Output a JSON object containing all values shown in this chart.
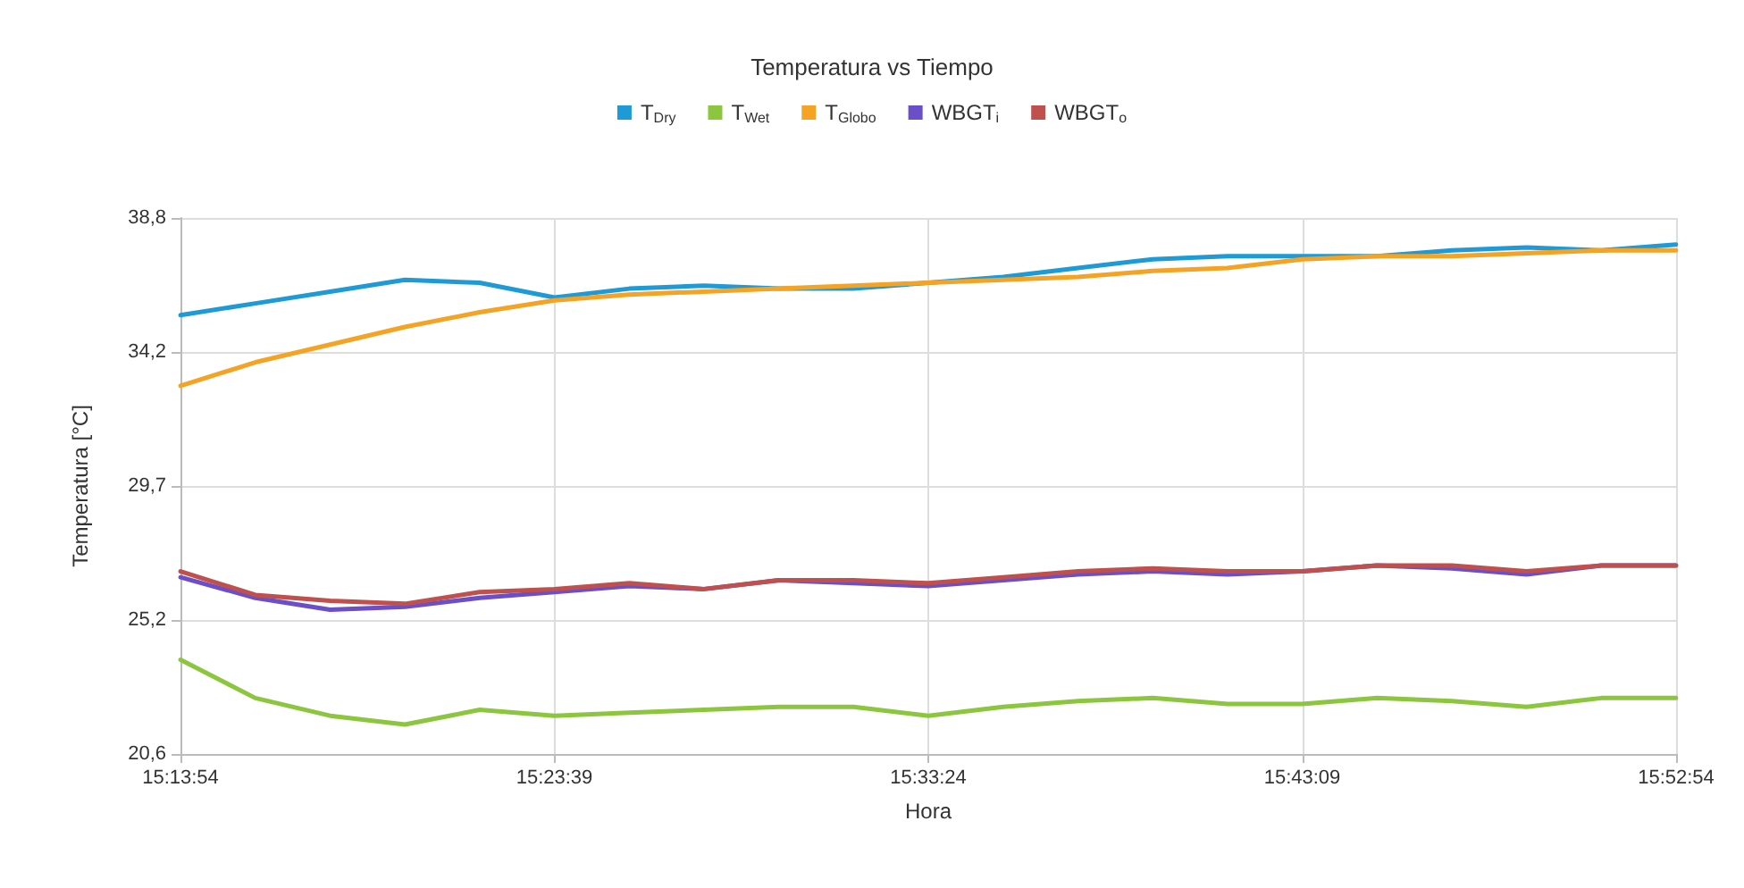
{
  "chart_data": {
    "type": "line",
    "title": "Temperatura vs Tiempo",
    "xlabel": "Hora",
    "ylabel": "Temperatura [°C]",
    "x": [
      15.2317,
      15.2642,
      15.2967,
      15.3292,
      15.3617,
      15.3942,
      15.4267,
      15.4592,
      15.4917,
      15.5242,
      15.5567,
      15.5892,
      15.6217,
      15.6542,
      15.6867,
      15.7192,
      15.7517,
      15.7842,
      15.8167,
      15.8492,
      15.8816
    ],
    "xlim": [
      15.231667,
      15.881667
    ],
    "xticks": [
      {
        "value": 15.231667,
        "label": "15:13:54"
      },
      {
        "value": 15.394167,
        "label": "15:23:39"
      },
      {
        "value": 15.556667,
        "label": "15:33:24"
      },
      {
        "value": 15.719167,
        "label": "15:43:09"
      },
      {
        "value": 15.881667,
        "label": "15:52:54"
      }
    ],
    "ylim": [
      20.6,
      38.8
    ],
    "yticks": [
      {
        "value": 20.6,
        "label": "20,6"
      },
      {
        "value": 25.15,
        "label": "25,2"
      },
      {
        "value": 29.7,
        "label": "29,7"
      },
      {
        "value": 34.25,
        "label": "34,2"
      },
      {
        "value": 38.8,
        "label": "38,8"
      }
    ],
    "grid": true,
    "legend": "top",
    "marker": "none",
    "line_style": "solid",
    "series": [
      {
        "name": "T$_{Dry}$",
        "color": "#1e9ad6",
        "values": [
          35.5,
          35.9,
          36.3,
          36.7,
          36.6,
          36.1,
          36.4,
          36.5,
          36.4,
          36.4,
          36.6,
          36.8,
          37.1,
          37.4,
          37.5,
          37.5,
          37.5,
          37.7,
          37.8,
          37.7,
          37.9
        ]
      },
      {
        "name": "T$_{Wet}$",
        "color": "#8cc63e",
        "values": [
          23.8,
          22.5,
          21.9,
          21.6,
          22.1,
          21.9,
          22.0,
          22.1,
          22.2,
          22.2,
          21.9,
          22.2,
          22.4,
          22.5,
          22.3,
          22.3,
          22.5,
          22.4,
          22.2,
          22.5,
          22.5
        ]
      },
      {
        "name": "T$_{Globo}$",
        "color": "#f4a324",
        "values": [
          33.1,
          33.9,
          34.5,
          35.1,
          35.6,
          36.0,
          36.2,
          36.3,
          36.4,
          36.5,
          36.6,
          36.7,
          36.8,
          37.0,
          37.1,
          37.4,
          37.5,
          37.5,
          37.6,
          37.7,
          37.7
        ]
      },
      {
        "name": "WBGT$_{i}$",
        "color": "#6a4fc8",
        "values": [
          26.6,
          25.9,
          25.5,
          25.6,
          25.9,
          26.1,
          26.3,
          26.2,
          26.5,
          26.4,
          26.3,
          26.5,
          26.7,
          26.8,
          26.7,
          26.8,
          27.0,
          26.9,
          26.7,
          27.0,
          27.0
        ]
      },
      {
        "name": "WBGT$_{o}$",
        "color": "#c0504d",
        "values": [
          26.8,
          26.0,
          25.8,
          25.7,
          26.1,
          26.2,
          26.4,
          26.2,
          26.5,
          26.5,
          26.4,
          26.6,
          26.8,
          26.9,
          26.8,
          26.8,
          27.0,
          27.0,
          26.8,
          27.0,
          27.0
        ]
      }
    ]
  }
}
